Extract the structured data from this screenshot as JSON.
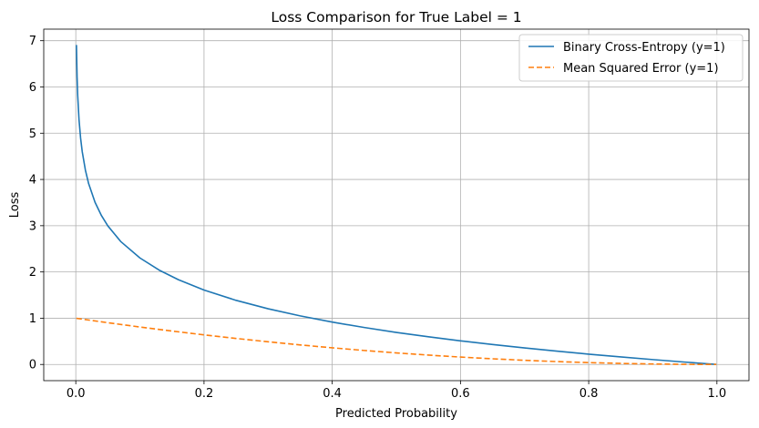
{
  "chart_data": {
    "type": "line",
    "title": "Loss Comparison for True Label = 1",
    "xlabel": "Predicted Probability",
    "ylabel": "Loss",
    "xlim": [
      -0.05,
      1.05
    ],
    "ylim": [
      -0.35,
      7.25
    ],
    "x_ticks": [
      0.0,
      0.2,
      0.4,
      0.6,
      0.8,
      1.0
    ],
    "x_tick_labels": [
      "0.0",
      "0.2",
      "0.4",
      "0.6",
      "0.8",
      "1.0"
    ],
    "y_ticks": [
      0,
      1,
      2,
      3,
      4,
      5,
      6,
      7
    ],
    "y_tick_labels": [
      "0",
      "1",
      "2",
      "3",
      "4",
      "5",
      "6",
      "7"
    ],
    "grid": true,
    "legend_position": "top-right",
    "series": [
      {
        "name": "Binary Cross-Entropy (y=1)",
        "color": "#1f77b4",
        "style": "solid",
        "x": [
          0.001,
          0.002,
          0.003,
          0.005,
          0.0075,
          0.01,
          0.015,
          0.02,
          0.03,
          0.04,
          0.05,
          0.07,
          0.1,
          0.13,
          0.16,
          0.2,
          0.25,
          0.3,
          0.35,
          0.4,
          0.45,
          0.5,
          0.55,
          0.6,
          0.65,
          0.7,
          0.75,
          0.8,
          0.85,
          0.9,
          0.95,
          0.999
        ],
        "y": [
          6.908,
          6.215,
          5.809,
          5.298,
          4.893,
          4.605,
          4.2,
          3.912,
          3.507,
          3.219,
          2.996,
          2.659,
          2.303,
          2.04,
          1.833,
          1.609,
          1.386,
          1.204,
          1.05,
          0.916,
          0.799,
          0.693,
          0.598,
          0.511,
          0.431,
          0.357,
          0.288,
          0.223,
          0.163,
          0.105,
          0.051,
          0.001
        ]
      },
      {
        "name": "Mean Squared Error (y=1)",
        "color": "#ff7f0e",
        "style": "dashed",
        "x": [
          0.001,
          0.05,
          0.1,
          0.15,
          0.2,
          0.25,
          0.3,
          0.35,
          0.4,
          0.45,
          0.5,
          0.55,
          0.6,
          0.65,
          0.7,
          0.75,
          0.8,
          0.85,
          0.9,
          0.95,
          0.999
        ],
        "y": [
          0.998,
          0.9025,
          0.81,
          0.7225,
          0.64,
          0.5625,
          0.49,
          0.4225,
          0.36,
          0.3025,
          0.25,
          0.2025,
          0.16,
          0.1225,
          0.09,
          0.0625,
          0.04,
          0.0225,
          0.01,
          0.0025,
          1e-06
        ]
      }
    ]
  }
}
